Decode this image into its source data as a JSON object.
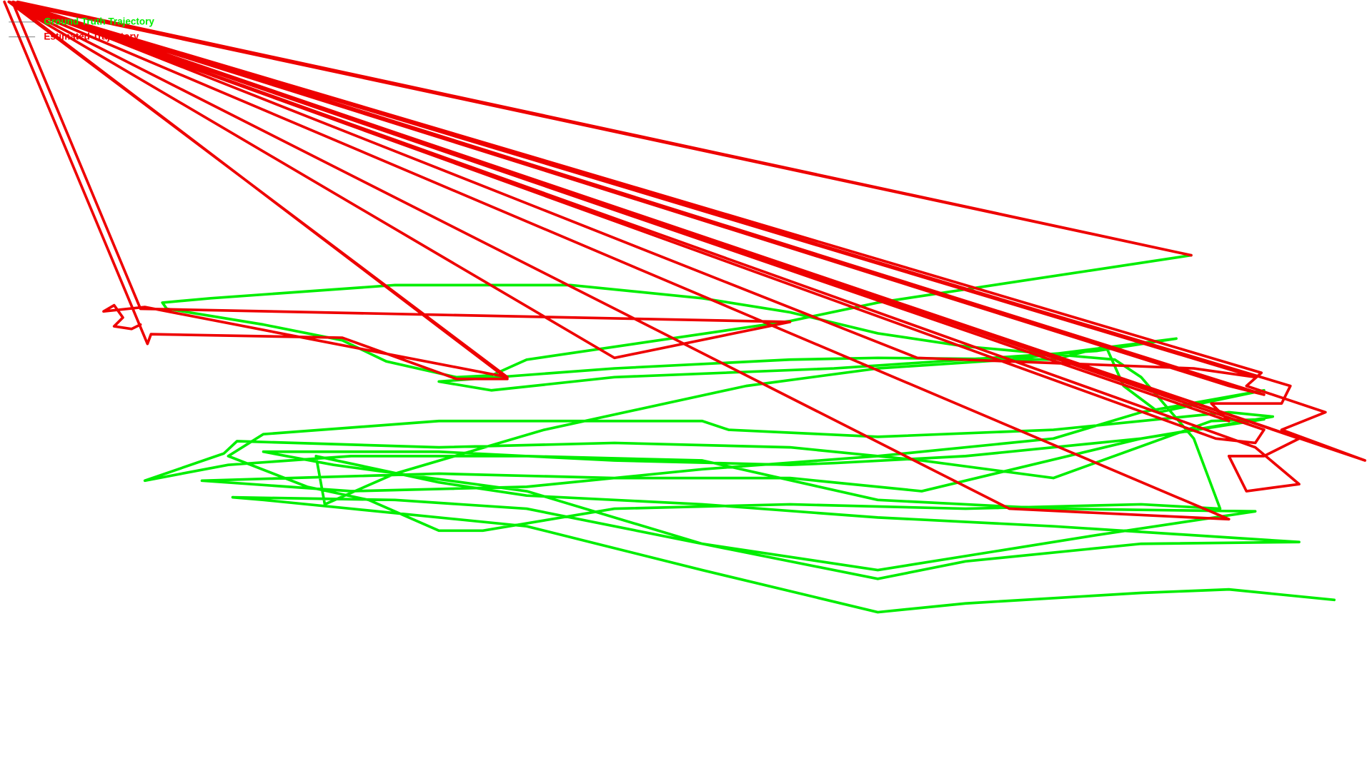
{
  "chart_data": {
    "type": "line",
    "xlim": [
      0,
      1563
    ],
    "ylim": [
      879,
      0
    ],
    "series": [
      {
        "name": "Ground Truth Trajectory",
        "color": "#00ee00",
        "x": [
          1357,
          1000,
          900,
          600,
          560,
          520,
          440,
          390,
          300,
          190,
          185,
          240,
          450,
          650,
          800,
          900,
          1000,
          1100,
          1270,
          1300,
          1360,
          1390,
          1300,
          1100,
          900,
          700,
          550,
          500,
          420,
          350,
          260,
          300,
          500,
          800,
          830,
          1000,
          1200,
          1400,
          1450,
          1300,
          1100,
          950,
          900,
          700,
          500,
          300,
          380,
          600,
          800,
          1000,
          1100,
          1300,
          1480,
          1200,
          1000,
          800,
          700,
          600,
          500,
          360,
          370,
          450,
          620,
          850,
          1000,
          1150,
          1340,
          1250,
          1100,
          950,
          700,
          560,
          500,
          700,
          900,
          1000,
          1200,
          1260,
          1280,
          1320,
          1440,
          1300,
          1200,
          1000,
          800,
          600,
          400,
          230,
          500,
          700,
          900,
          1050,
          1300,
          1440,
          1380,
          1200,
          1050,
          900,
          700,
          500,
          270,
          255,
          165,
          260,
          400,
          600,
          800,
          1000,
          1200,
          1430,
          1250,
          1000,
          800,
          600,
          450,
          265,
          300,
          400,
          600,
          800,
          1000,
          1100,
          1300,
          1400,
          1520
        ],
        "values": [
          291,
          345,
          366,
          410,
          428,
          430,
          412,
          388,
          370,
          352,
          345,
          340,
          325,
          325,
          340,
          356,
          380,
          395,
          410,
          430,
          500,
          580,
          575,
          580,
          575,
          580,
          605,
          605,
          570,
          555,
          520,
          495,
          480,
          480,
          490,
          498,
          490,
          470,
          475,
          500,
          520,
          528,
          530,
          525,
          515,
          515,
          530,
          560,
          620,
          660,
          640,
          620,
          618,
          600,
          590,
          575,
          570,
          565,
          550,
          520,
          575,
          540,
          490,
          440,
          420,
          410,
          386,
          400,
          410,
          420,
          430,
          445,
          435,
          420,
          410,
          408,
          410,
          395,
          440,
          470,
          445,
          470,
          500,
          520,
          535,
          555,
          560,
          548,
          540,
          545,
          545,
          560,
          500,
          478,
          480,
          545,
          525,
          510,
          505,
          510,
          503,
          517,
          548,
          530,
          520,
          520,
          525,
          570,
          580,
          583,
          610,
          650,
          620,
          580,
          570,
          567,
          570,
          580,
          600,
          650,
          698,
          688,
          676,
          672,
          684
        ]
      },
      {
        "name": "Estimated Trajectory",
        "color": "#ee0000",
        "x": [
          5,
          168,
          172,
          390,
          520,
          578,
          15,
          160,
          900,
          700,
          10,
          1357,
          20,
          1045,
          1360,
          1430,
          10,
          1437,
          1420,
          1510,
          1460,
          1555,
          10,
          1480,
          1440,
          1400,
          1420,
          1480,
          1430,
          10,
          1400,
          1150,
          10,
          1400,
          1380,
          1460,
          1470,
          10,
          1385,
          1430,
          1440,
          15,
          1440,
          1400,
          10,
          578,
          165,
          118,
          130,
          140,
          130,
          150,
          160
        ],
        "values": [
          2,
          392,
          381,
          385,
          432,
          432,
          4,
          352,
          367,
          408,
          2,
          291,
          2,
          408,
          420,
          430,
          2,
          425,
          440,
          470,
          490,
          525,
          2,
          500,
          520,
          520,
          560,
          552,
          510,
          2,
          592,
          580,
          2,
          480,
          460,
          460,
          440,
          2,
          500,
          505,
          490,
          2,
          450,
          440,
          2,
          430,
          350,
          355,
          348,
          362,
          372,
          375,
          370
        ]
      }
    ]
  }
}
